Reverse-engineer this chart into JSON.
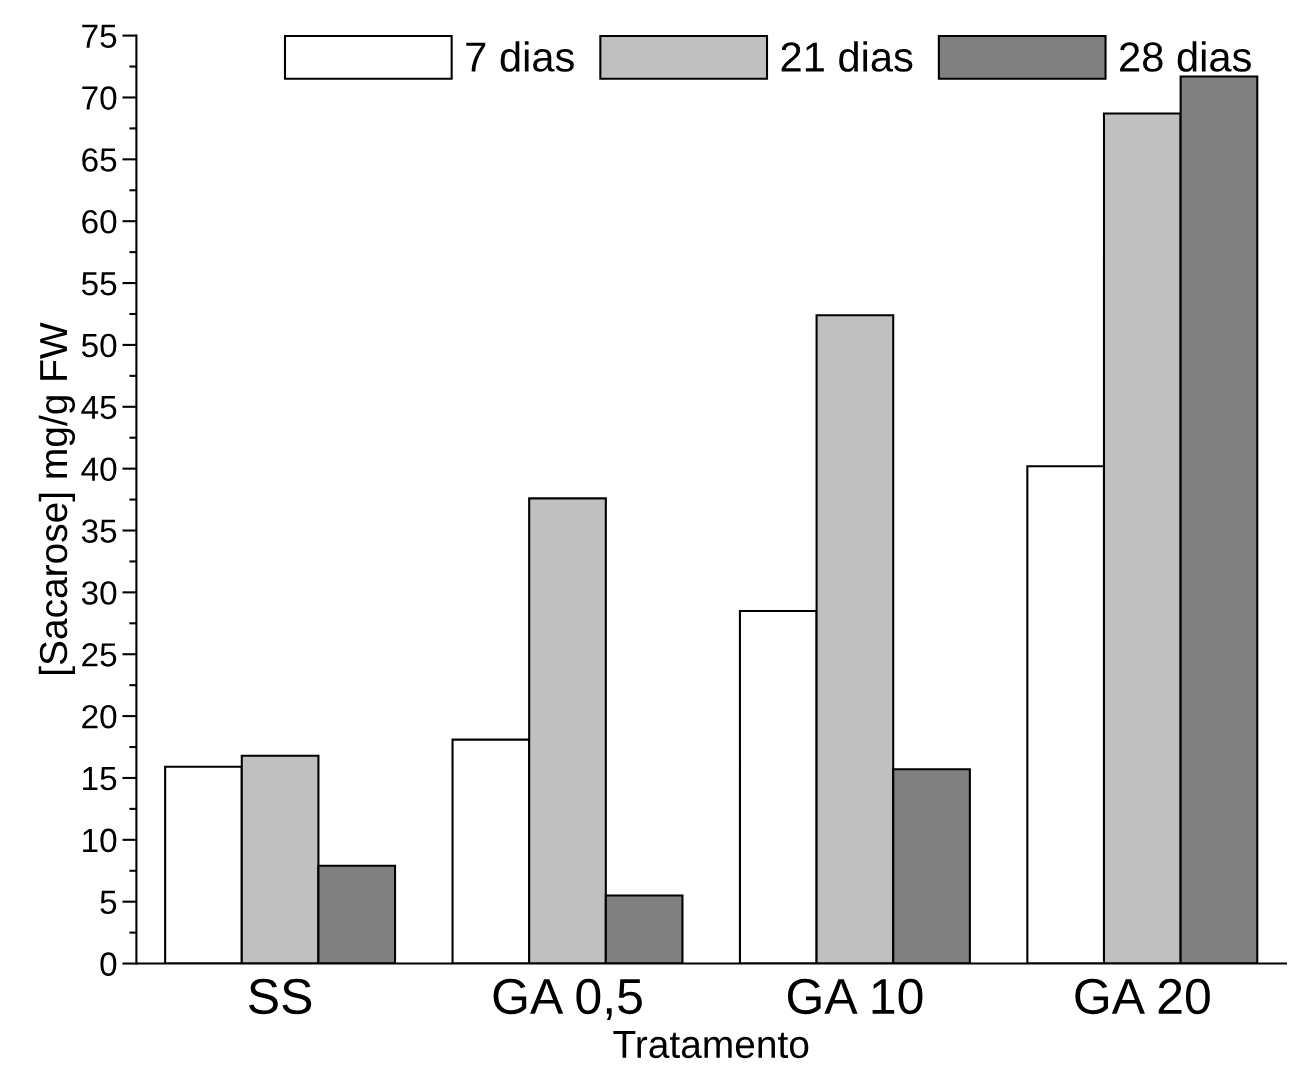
{
  "chart_data": {
    "type": "bar",
    "xlabel": "Tratamento",
    "ylabel": "[Sacarose] mg/g FW",
    "categories": [
      "SS",
      "GA 0,5",
      "GA 10",
      "GA 20"
    ],
    "series": [
      {
        "name": "7 dias",
        "color": "#ffffff",
        "values": [
          15.9,
          18.1,
          28.5,
          40.2
        ]
      },
      {
        "name": "21 dias",
        "color": "#c0c0c0",
        "values": [
          16.8,
          37.6,
          52.4,
          68.7
        ]
      },
      {
        "name": "28 dias",
        "color": "#808080",
        "values": [
          7.9,
          5.5,
          15.7,
          71.7
        ]
      }
    ],
    "ylim": [
      0,
      75
    ],
    "yticks": [
      0,
      5,
      10,
      15,
      20,
      25,
      30,
      35,
      40,
      45,
      50,
      55,
      60,
      65,
      70,
      75
    ],
    "grid": false,
    "legend": "top"
  }
}
